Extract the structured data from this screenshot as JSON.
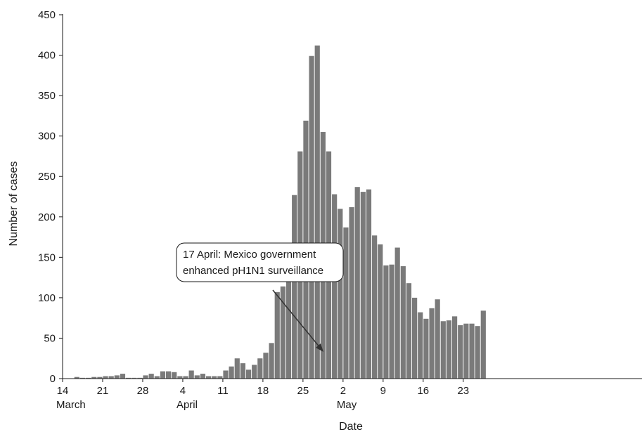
{
  "chart_data": {
    "type": "bar",
    "title": "",
    "xlabel": "Date",
    "ylabel": "Number of cases",
    "ylim": [
      0,
      450
    ],
    "yticks": [
      "0",
      "50",
      "100",
      "150",
      "200",
      "250",
      "300",
      "350",
      "400",
      "450"
    ],
    "xticks": [
      {
        "label": "14",
        "day_index": 0
      },
      {
        "label": "21",
        "day_index": 7
      },
      {
        "label": "28",
        "day_index": 14
      },
      {
        "label": "4",
        "day_index": 21
      },
      {
        "label": "11",
        "day_index": 28
      },
      {
        "label": "18",
        "day_index": 35
      },
      {
        "label": "25",
        "day_index": 42
      },
      {
        "label": "2",
        "day_index": 49
      },
      {
        "label": "9",
        "day_index": 56
      },
      {
        "label": "16",
        "day_index": 63
      },
      {
        "label": "23",
        "day_index": 70
      }
    ],
    "month_labels": [
      {
        "label": "March",
        "day_index": 0
      },
      {
        "label": "April",
        "day_index": 21
      },
      {
        "label": "May",
        "day_index": 49
      }
    ],
    "x_start_date": "14 March",
    "values": [
      0,
      0,
      2,
      1,
      1,
      2,
      2,
      3,
      3,
      4,
      6,
      1,
      1,
      1,
      4,
      6,
      3,
      9,
      9,
      8,
      3,
      3,
      10,
      4,
      6,
      3,
      3,
      3,
      10,
      15,
      25,
      19,
      11,
      17,
      25,
      32,
      44,
      107,
      114,
      154,
      227,
      281,
      319,
      399,
      412,
      305,
      281,
      228,
      210,
      187,
      212,
      237,
      231,
      234,
      177,
      166,
      140,
      141,
      162,
      139,
      118,
      100,
      82,
      74,
      87,
      98,
      71,
      72,
      77,
      66,
      68,
      68,
      65,
      84
    ],
    "annotation": {
      "lines": [
        "17 April: Mexico government",
        "enhanced pH1N1 surveillance"
      ],
      "arrow_to_day_index": 33
    }
  }
}
